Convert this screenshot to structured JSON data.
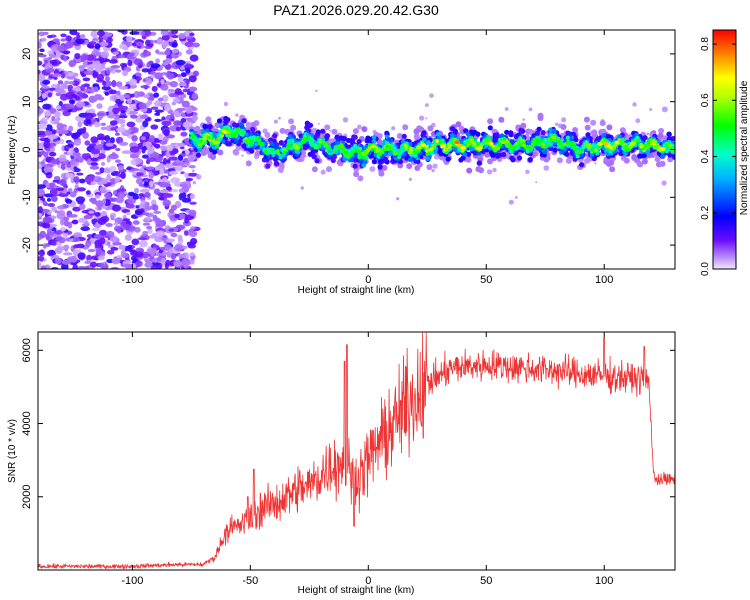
{
  "title": "PAZ1.2026.029.20.42.G30",
  "chart_data": [
    {
      "type": "heatmap",
      "xlabel": "Height of straight line (km)",
      "ylabel": "Frequency (Hz)",
      "xlim": [
        -140,
        130
      ],
      "ylim": [
        -25,
        25
      ],
      "xticks": [
        -100,
        -50,
        0,
        50,
        100
      ],
      "yticks": [
        -20,
        -10,
        0,
        10,
        20
      ],
      "tick_labels_x": [
        "-100",
        "-50",
        "0",
        "50",
        "100"
      ],
      "tick_labels_y": [
        "-20",
        "-10",
        "0",
        "10",
        "20"
      ],
      "colorbar": {
        "label": "Normalized spectral amplitude",
        "range": [
          0,
          0.85
        ],
        "ticks": [
          "0.0",
          "0.2",
          "0.4",
          "0.6",
          "0.8"
        ],
        "colormap": "rainbow (violet at 0, red at max)"
      },
      "noise_region_x": [
        -140,
        -75
      ],
      "signal_ridge": {
        "x": [
          -75,
          -65,
          -58,
          -50,
          -45,
          -40,
          -35,
          -30,
          -25,
          -20,
          -15,
          -10,
          -5,
          0,
          10,
          20,
          30,
          40,
          50,
          60,
          70,
          80,
          90,
          100,
          110,
          120,
          130
        ],
        "frequency": [
          2,
          2,
          4,
          2,
          1,
          -1,
          0,
          1,
          2,
          1,
          0,
          0,
          -1,
          0,
          0,
          0,
          1,
          1,
          1,
          1,
          1,
          2,
          0,
          1,
          1,
          1,
          0
        ],
        "peak_amplitude": [
          0.5,
          0.8,
          0.6,
          0.5,
          0.4,
          0.4,
          0.5,
          0.6,
          0.5,
          0.5,
          0.4,
          0.6,
          0.5,
          0.8,
          0.6,
          0.6,
          0.8,
          0.8,
          0.7,
          0.6,
          0.6,
          0.6,
          0.5,
          0.7,
          0.6,
          0.8,
          0.5
        ]
      }
    },
    {
      "type": "line",
      "xlabel": "Height of straight line (km)",
      "ylabel": "SNR (10 * v/v)",
      "xlim": [
        -140,
        130
      ],
      "ylim": [
        0,
        6500
      ],
      "xticks": [
        -100,
        -50,
        0,
        50,
        100
      ],
      "yticks": [
        2000,
        4000,
        6000
      ],
      "tick_labels_x": [
        "-100",
        "-50",
        "0",
        "50",
        "100"
      ],
      "tick_labels_y": [
        "2000",
        "4000",
        "6000"
      ],
      "series": [
        {
          "color": "#ee3333",
          "envelope_x": [
            -140,
            -100,
            -80,
            -70,
            -65,
            -60,
            -55,
            -50,
            -45,
            -40,
            -35,
            -30,
            -25,
            -20,
            -15,
            -10,
            -5,
            0,
            5,
            10,
            15,
            20,
            25,
            30,
            35,
            40,
            50,
            60,
            70,
            80,
            90,
            100,
            110,
            118,
            119,
            121,
            130
          ],
          "envelope_y": [
            100,
            100,
            150,
            150,
            350,
            1100,
            1200,
            1400,
            1700,
            1800,
            2000,
            2200,
            2300,
            2600,
            2900,
            2900,
            2500,
            3000,
            3500,
            3900,
            4400,
            4800,
            5100,
            5300,
            5500,
            5550,
            5600,
            5550,
            5500,
            5450,
            5350,
            5300,
            5250,
            5200,
            5100,
            2500,
            2450
          ],
          "spikes": [
            {
              "x": -48.5,
              "y": 2750
            },
            {
              "x": -51,
              "y": 2000
            },
            {
              "x": -9,
              "y": 6150
            },
            {
              "x": -10,
              "y": 5700
            },
            {
              "x": -6,
              "y": 1200
            },
            {
              "x": 100,
              "y": 6350
            },
            {
              "x": 117,
              "y": 6100
            }
          ]
        }
      ]
    }
  ]
}
